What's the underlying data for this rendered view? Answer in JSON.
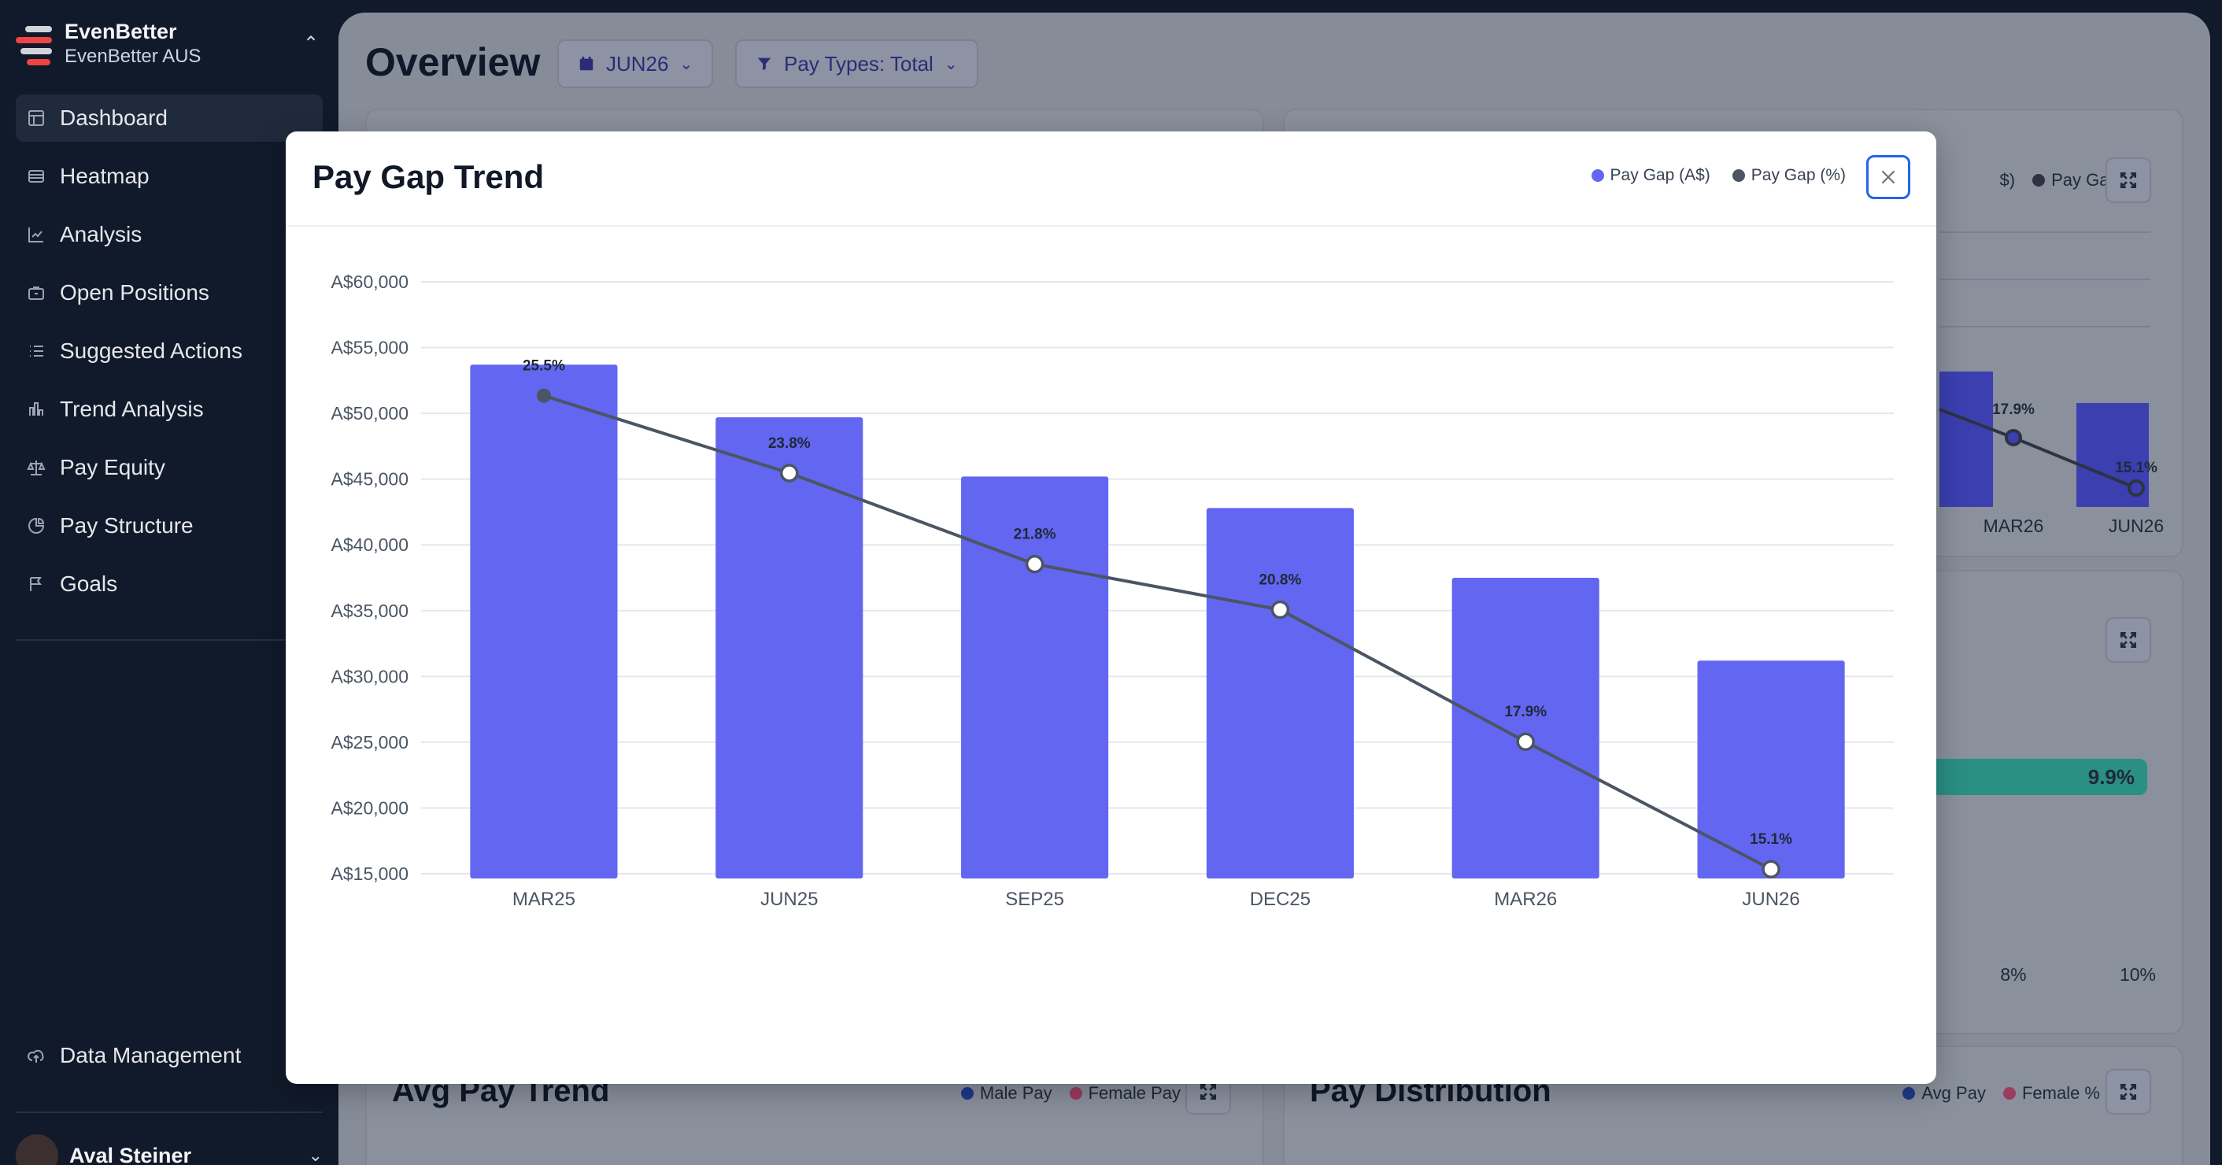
{
  "app": {
    "name": "EvenBetter",
    "org": "EvenBetter AUS",
    "switch_icon": "chevron-updown-icon"
  },
  "sidebar": {
    "items": [
      {
        "label": "Dashboard",
        "icon": "dashboard-icon",
        "active": true
      },
      {
        "label": "Heatmap",
        "icon": "heatmap-icon"
      },
      {
        "label": "Analysis",
        "icon": "line-chart-icon"
      },
      {
        "label": "Open Positions",
        "icon": "briefcase-icon"
      },
      {
        "label": "Suggested Actions",
        "icon": "list-icon"
      },
      {
        "label": "Trend Analysis",
        "icon": "bar-chart-icon"
      },
      {
        "label": "Pay Equity",
        "icon": "scale-icon"
      },
      {
        "label": "Pay Structure",
        "icon": "pie-chart-icon"
      },
      {
        "label": "Goals",
        "icon": "flag-icon"
      }
    ],
    "bottom_items": [
      {
        "label": "Data Management",
        "icon": "cloud-upload-icon"
      }
    ],
    "user": {
      "name": "Aval Steiner"
    }
  },
  "header": {
    "title": "Overview",
    "period_filter": "JUN26",
    "pay_types_filter": "Pay Types: Total"
  },
  "background": {
    "right_top_legend": [
      "$)",
      "Pay Gap (%)"
    ],
    "right_top_labels": {
      "pct_a": "17.9%",
      "pct_b": "15.1%",
      "x_a": "MAR26",
      "x_b": "JUN26"
    },
    "right_mid_bar_value": "9.9%",
    "right_mid_ticks": [
      "8%",
      "10%"
    ],
    "avg_pay_trend": {
      "title": "Avg Pay Trend",
      "legend": [
        "Male Pay",
        "Female Pay"
      ]
    },
    "pay_distribution": {
      "title": "Pay Distribution",
      "legend": [
        "Avg Pay",
        "Female %"
      ]
    }
  },
  "modal": {
    "title": "Pay Gap Trend",
    "legend": [
      {
        "label": "Pay Gap (A$)",
        "color": "#6366f1"
      },
      {
        "label": "Pay Gap (%)",
        "color": "#4b5563"
      }
    ],
    "close_icon": "close-icon"
  },
  "colors": {
    "bar": "#6366f1",
    "line": "#4b5563",
    "accent": "#2563eb",
    "teal": "#2a8f85"
  },
  "chart_data": {
    "type": "bar",
    "title": "Pay Gap Trend",
    "categories": [
      "MAR25",
      "JUN25",
      "SEP25",
      "DEC25",
      "MAR26",
      "JUN26"
    ],
    "series": [
      {
        "name": "Pay Gap (A$)",
        "type": "bar",
        "values": [
          53700,
          49700,
          45200,
          42800,
          37500,
          31200
        ]
      },
      {
        "name": "Pay Gap (%)",
        "type": "line",
        "values": [
          25.5,
          23.8,
          21.8,
          20.8,
          17.9,
          15.1
        ]
      }
    ],
    "y_ticks": [
      "A$15,000",
      "A$20,000",
      "A$25,000",
      "A$30,000",
      "A$35,000",
      "A$40,000",
      "A$45,000",
      "A$50,000",
      "A$55,000",
      "A$60,000"
    ],
    "ylim": [
      15000,
      60000
    ],
    "y2lim": [
      15,
      28
    ],
    "data_labels": [
      "25.5%",
      "23.8%",
      "21.8%",
      "20.8%",
      "17.9%",
      "15.1%"
    ],
    "grid": true,
    "legend": "top-right"
  }
}
